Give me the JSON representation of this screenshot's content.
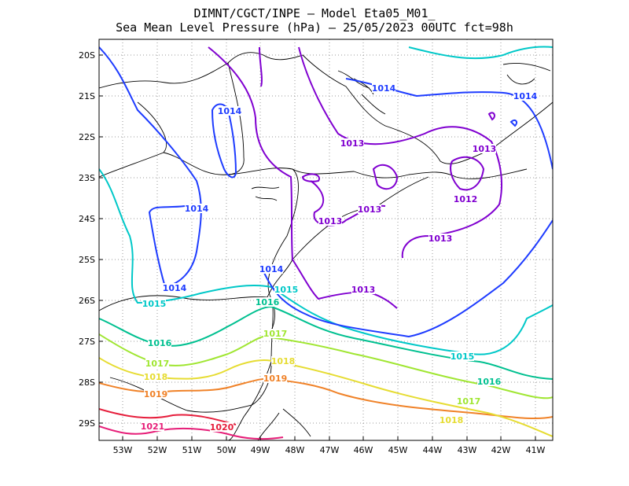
{
  "title_line1": "DIMNT/CGCT/INPE –  Model Eta05_M01_",
  "title_line2": "Sea Mean Level Pressure (hPa) – 25/05/2023 00UTC fct=98h",
  "lat_labels": [
    "20S",
    "21S",
    "22S",
    "23S",
    "24S",
    "25S",
    "26S",
    "27S",
    "28S",
    "29S"
  ],
  "lon_labels": [
    "53W",
    "52W",
    "51W",
    "50W",
    "49W",
    "48W",
    "47W",
    "46W",
    "45W",
    "44W",
    "43W",
    "42W",
    "41W"
  ],
  "colors": {
    "1012": "#8000d0",
    "1013": "#8000d0",
    "1014": "#1e3cff",
    "1015": "#00c8c8",
    "1016": "#00c090",
    "1017": "#a0e632",
    "1018": "#e6dc32",
    "1019": "#f08228",
    "1020": "#e61e3c",
    "1021": "#e61e78",
    "coast": "#000000",
    "grid": "#999999"
  },
  "contour_labels": [
    {
      "text": "1014",
      "level": "1014"
    },
    {
      "text": "1014",
      "level": "1014"
    },
    {
      "text": "1014",
      "level": "1014"
    },
    {
      "text": "1014",
      "level": "1014"
    },
    {
      "text": "1014",
      "level": "1014"
    },
    {
      "text": "1014",
      "level": "1014"
    },
    {
      "text": "1013",
      "level": "1013"
    },
    {
      "text": "1013",
      "level": "1013"
    },
    {
      "text": "1013",
      "level": "1013"
    },
    {
      "text": "1013",
      "level": "1013"
    },
    {
      "text": "1013",
      "level": "1013"
    },
    {
      "text": "1013",
      "level": "1013"
    },
    {
      "text": "1012",
      "level": "1012"
    },
    {
      "text": "1015",
      "level": "1015"
    },
    {
      "text": "1015",
      "level": "1015"
    },
    {
      "text": "1015",
      "level": "1015"
    },
    {
      "text": "1016",
      "level": "1016"
    },
    {
      "text": "1016",
      "level": "1016"
    },
    {
      "text": "1016",
      "level": "1016"
    },
    {
      "text": "1017",
      "level": "1017"
    },
    {
      "text": "1017",
      "level": "1017"
    },
    {
      "text": "1017",
      "level": "1017"
    },
    {
      "text": "1018",
      "level": "1018"
    },
    {
      "text": "1018",
      "level": "1018"
    },
    {
      "text": "1018",
      "level": "1018"
    },
    {
      "text": "1019",
      "level": "1019"
    },
    {
      "text": "1019",
      "level": "1019"
    },
    {
      "text": "1020",
      "level": "1020"
    },
    {
      "text": "1021",
      "level": "1021"
    }
  ]
}
